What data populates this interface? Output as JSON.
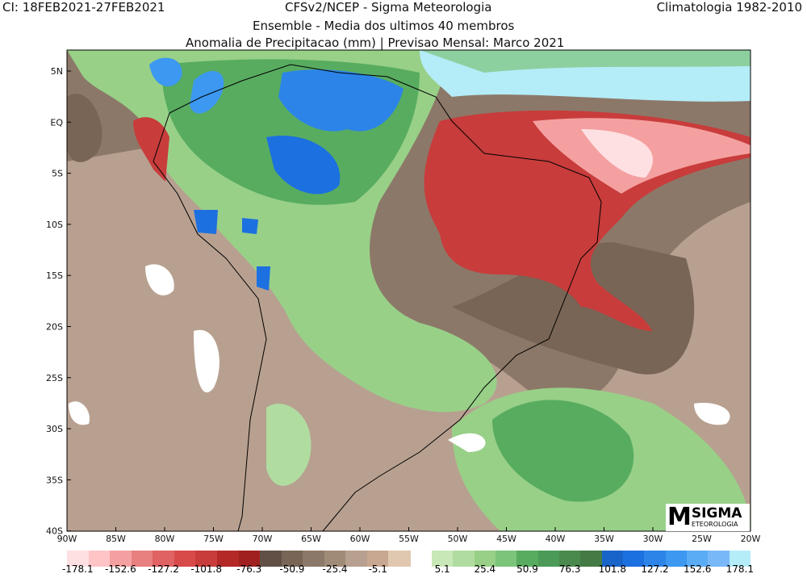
{
  "header": {
    "ic": "CI: 18FEB2021-27FEB2021",
    "source": "CFSv2/NCEP - Sigma Meteorologia",
    "climatology": "Climatologia 1982-2010",
    "subtitle1": "Ensemble - Media dos ultimos 40 membros",
    "subtitle2": "Anomalia de Precipitacao (mm) | Previsao Mensal: Marco 2021"
  },
  "axes": {
    "lat_labels": [
      "5N",
      "EQ",
      "5S",
      "10S",
      "15S",
      "20S",
      "25S",
      "30S",
      "35S",
      "40S"
    ],
    "lon_labels": [
      "90W",
      "85W",
      "80W",
      "75W",
      "70W",
      "65W",
      "60W",
      "55W",
      "50W",
      "45W",
      "40W",
      "35W",
      "30W",
      "25W",
      "20W"
    ]
  },
  "logo": {
    "mark": "M",
    "name": "SIGMA",
    "tagline": "ETEOROLOGIA"
  },
  "legend": {
    "negative_colors": [
      "#ffe0e2",
      "#ffc4c6",
      "#f4a0a0",
      "#e88080",
      "#e06262",
      "#d84a4a",
      "#c83c3c",
      "#b42828",
      "#a02020",
      "#605045",
      "#786555",
      "#8c7868",
      "#a08a78",
      "#b8a090",
      "#c8a890",
      "#e0c8b0"
    ],
    "positive_colors": [
      "#c8e8b8",
      "#b0dca0",
      "#98d088",
      "#7cc47a",
      "#58ac60",
      "#4c9a58",
      "#4a8a4c",
      "#447a44",
      "#1864c8",
      "#1c70e0",
      "#2c84e8",
      "#3c98f0",
      "#5aacf4",
      "#78b8f8",
      "#b4ecf8"
    ],
    "negative_labels": [
      "-178.1",
      "-152.6",
      "-127.2",
      "-101.8",
      "-76.3",
      "-50.9",
      "-25.4",
      "-5.1"
    ],
    "positive_labels": [
      "5.1",
      "25.4",
      "50.9",
      "76.3",
      "101.8",
      "127.2",
      "152.6",
      "178.1"
    ]
  }
}
